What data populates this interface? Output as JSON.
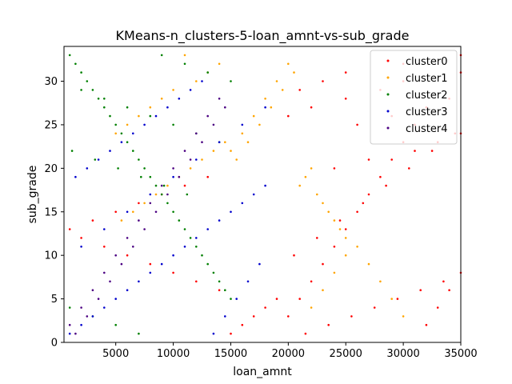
{
  "chart_data": {
    "type": "scatter",
    "title": "KMeans-n_clusters-5-loan_amnt-vs-sub_grade",
    "xlabel": "loan_amnt",
    "ylabel": "sub_grade",
    "xlim": [
      500,
      35000
    ],
    "ylim": [
      0,
      34
    ],
    "xticks": [
      5000,
      10000,
      15000,
      20000,
      25000,
      30000,
      35000
    ],
    "yticks": [
      0,
      5,
      10,
      15,
      20,
      25,
      30
    ],
    "grid": false,
    "legend_position": "top-right",
    "series": [
      {
        "name": "cluster0",
        "color": "#ff0000",
        "x": [
          20000,
          21000,
          22000,
          23000,
          24000,
          25000,
          26000,
          27000,
          28000,
          29000,
          30000,
          31000,
          32000,
          33000,
          34000,
          35000,
          20500,
          22500,
          24500,
          26500,
          28500,
          30500,
          32500,
          34500,
          21500,
          23500,
          25500,
          27500,
          29500,
          31500,
          33500,
          20000,
          22000,
          25000,
          28000,
          30000,
          35000,
          15000,
          16000,
          17000,
          18000,
          19000,
          14000,
          12000,
          10000,
          8000,
          6000,
          4000,
          2000,
          1000,
          3000,
          5000,
          7000,
          9000,
          11000,
          13000,
          24000,
          27000,
          31000,
          33000,
          35000,
          26000,
          29000,
          32000,
          34000,
          21000,
          23000,
          25000,
          30000,
          35000
        ],
        "y": [
          3,
          5,
          7,
          9,
          11,
          13,
          15,
          17,
          19,
          21,
          23,
          25,
          2,
          4,
          6,
          8,
          10,
          12,
          14,
          16,
          18,
          20,
          22,
          24,
          1,
          2,
          3,
          4,
          5,
          6,
          7,
          26,
          27,
          28,
          29,
          30,
          31,
          1,
          2,
          3,
          4,
          5,
          6,
          7,
          8,
          9,
          10,
          11,
          12,
          13,
          14,
          15,
          16,
          17,
          18,
          19,
          20,
          21,
          22,
          23,
          24,
          25,
          26,
          27,
          28,
          29,
          30,
          31,
          32,
          33
        ]
      },
      {
        "name": "cluster1",
        "color": "#ffa500",
        "x": [
          15000,
          16000,
          17000,
          18000,
          19000,
          20000,
          21000,
          22000,
          23000,
          24000,
          25000,
          15500,
          16500,
          17500,
          18500,
          19500,
          20500,
          21500,
          22500,
          23500,
          24500,
          26000,
          27000,
          28000,
          29000,
          30000,
          12000,
          13000,
          14000,
          11000,
          10000,
          9000,
          8000,
          7000,
          6000,
          5000,
          14500,
          13500,
          12500,
          11500,
          10500,
          9500,
          8500,
          7500,
          6500,
          5500,
          25000,
          24000,
          23000,
          22000
        ],
        "y": [
          22,
          24,
          26,
          28,
          30,
          32,
          18,
          20,
          16,
          14,
          12,
          21,
          23,
          25,
          27,
          29,
          31,
          19,
          17,
          15,
          13,
          11,
          9,
          7,
          5,
          3,
          30,
          31,
          32,
          33,
          29,
          28,
          27,
          26,
          25,
          24,
          23,
          22,
          21,
          20,
          19,
          18,
          17,
          16,
          15,
          14,
          10,
          8,
          6,
          4
        ]
      },
      {
        "name": "cluster2",
        "color": "#008000",
        "x": [
          1000,
          2000,
          3000,
          4000,
          5000,
          6000,
          7000,
          8000,
          9000,
          10000,
          11000,
          12000,
          13000,
          14000,
          15000,
          1500,
          2500,
          3500,
          4500,
          5500,
          6500,
          7500,
          8500,
          9500,
          10500,
          11500,
          12500,
          13500,
          14500,
          1000,
          3000,
          5000,
          7000,
          9000,
          11000,
          13000,
          15000,
          2000,
          4000,
          6000,
          8000,
          10000,
          12000,
          14000,
          1200,
          3200,
          5200,
          7200,
          9200,
          11200
        ],
        "y": [
          33,
          31,
          29,
          27,
          25,
          23,
          21,
          19,
          17,
          15,
          13,
          11,
          9,
          7,
          5,
          32,
          30,
          28,
          26,
          24,
          22,
          20,
          18,
          16,
          14,
          12,
          10,
          8,
          6,
          4,
          3,
          2,
          1,
          33,
          32,
          31,
          30,
          29,
          28,
          27,
          26,
          25,
          24,
          23,
          22,
          21,
          20,
          19,
          18,
          17
        ]
      },
      {
        "name": "cluster3",
        "color": "#0000cd",
        "x": [
          1000,
          2000,
          3000,
          4000,
          5000,
          6000,
          7000,
          8000,
          9000,
          10000,
          11000,
          12000,
          13000,
          14000,
          15000,
          16000,
          17000,
          18000,
          1500,
          2500,
          3500,
          4500,
          5500,
          6500,
          7500,
          8500,
          9500,
          10500,
          11500,
          12500,
          13500,
          14500,
          15500,
          16500,
          17500,
          2000,
          4000,
          6000,
          8000,
          10000,
          12000,
          14000,
          16000,
          18000
        ],
        "y": [
          1,
          2,
          3,
          4,
          5,
          6,
          7,
          8,
          9,
          10,
          11,
          12,
          13,
          14,
          15,
          16,
          17,
          18,
          19,
          20,
          21,
          22,
          23,
          24,
          25,
          26,
          27,
          28,
          29,
          30,
          1,
          3,
          5,
          7,
          9,
          11,
          13,
          15,
          17,
          19,
          21,
          23,
          25,
          27
        ]
      },
      {
        "name": "cluster4",
        "color": "#4b0082",
        "x": [
          1000,
          3000,
          5000,
          7000,
          9000,
          11000,
          13000,
          2000,
          4000,
          6000,
          8000,
          10000,
          12000,
          14000,
          1500,
          3500,
          5500,
          7500,
          9500,
          11500,
          13500,
          2500,
          4500,
          6500,
          8500,
          10500,
          12500,
          14500
        ],
        "y": [
          2,
          6,
          10,
          14,
          18,
          22,
          26,
          4,
          8,
          12,
          16,
          20,
          24,
          28,
          1,
          5,
          9,
          13,
          17,
          21,
          25,
          3,
          7,
          11,
          15,
          19,
          23,
          27
        ]
      }
    ]
  }
}
